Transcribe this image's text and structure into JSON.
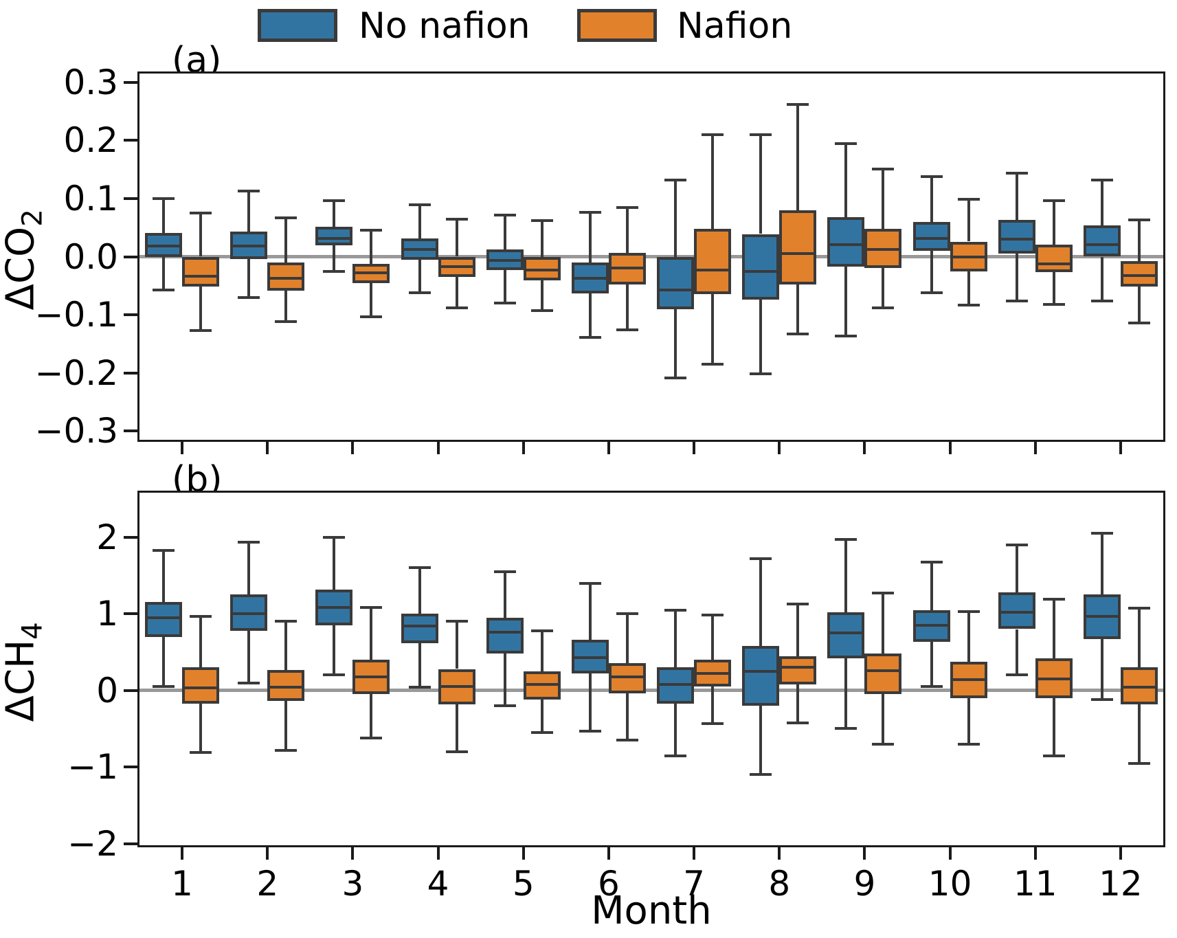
{
  "colors": {
    "no_nafion": "#3274A1",
    "nafion": "#E1812C",
    "box_edge": "#3A3A3A",
    "spine": "#1a1a1a",
    "zero_line": "#999999"
  },
  "legend": {
    "position": "top-center",
    "items": [
      {
        "label": "No nafion",
        "color": "#3274A1"
      },
      {
        "label": "Nafion",
        "color": "#E1812C"
      }
    ]
  },
  "xlabel": "Month",
  "chart_data": [
    {
      "type": "box",
      "panel_label": "(a)",
      "ylabel_base": "ΔCO",
      "ylabel_sub": "2",
      "ylim": [
        -0.315,
        0.315
      ],
      "yticks": [
        0.3,
        0.2,
        0.1,
        0.0,
        -0.1,
        -0.2,
        -0.3
      ],
      "ytick_labels": [
        "0.3",
        "0.2",
        "0.1",
        "0.0",
        "−0.1",
        "−0.2",
        "−0.3"
      ],
      "refline": 0,
      "grid": false,
      "categories": [
        "1",
        "2",
        "3",
        "4",
        "5",
        "6",
        "7",
        "8",
        "9",
        "10",
        "11",
        "12"
      ],
      "show_x_labels": false,
      "series": [
        {
          "name": "No nafion",
          "boxes": [
            {
              "whislo": -0.057,
              "q1": -0.001,
              "med": 0.018,
              "q3": 0.041,
              "whishi": 0.1
            },
            {
              "whislo": -0.07,
              "q1": -0.004,
              "med": 0.018,
              "q3": 0.043,
              "whishi": 0.113
            },
            {
              "whislo": -0.026,
              "q1": 0.019,
              "med": 0.031,
              "q3": 0.051,
              "whishi": 0.096
            },
            {
              "whislo": -0.062,
              "q1": -0.005,
              "med": 0.012,
              "q3": 0.031,
              "whishi": 0.089
            },
            {
              "whislo": -0.08,
              "q1": -0.023,
              "med": -0.007,
              "q3": 0.012,
              "whishi": 0.072
            },
            {
              "whislo": -0.139,
              "q1": -0.063,
              "med": -0.037,
              "q3": -0.01,
              "whishi": 0.076
            },
            {
              "whislo": -0.209,
              "q1": -0.091,
              "med": -0.057,
              "q3": -0.001,
              "whishi": 0.132
            },
            {
              "whislo": -0.202,
              "q1": -0.074,
              "med": -0.026,
              "q3": 0.039,
              "whishi": 0.21
            },
            {
              "whislo": -0.137,
              "q1": -0.017,
              "med": 0.021,
              "q3": 0.068,
              "whishi": 0.194
            },
            {
              "whislo": -0.062,
              "q1": 0.01,
              "med": 0.031,
              "q3": 0.06,
              "whishi": 0.138
            },
            {
              "whislo": -0.076,
              "q1": 0.005,
              "med": 0.03,
              "q3": 0.063,
              "whishi": 0.144
            },
            {
              "whislo": -0.076,
              "q1": 0.0,
              "med": 0.021,
              "q3": 0.054,
              "whishi": 0.132
            }
          ]
        },
        {
          "name": "Nafion",
          "boxes": [
            {
              "whislo": -0.127,
              "q1": -0.052,
              "med": -0.034,
              "q3": 0.0,
              "whishi": 0.075
            },
            {
              "whislo": -0.112,
              "q1": -0.058,
              "med": -0.037,
              "q3": -0.01,
              "whishi": 0.067
            },
            {
              "whislo": -0.103,
              "q1": -0.046,
              "med": -0.028,
              "q3": -0.012,
              "whishi": 0.045
            },
            {
              "whislo": -0.088,
              "q1": -0.035,
              "med": -0.017,
              "q3": 0.0,
              "whishi": 0.064
            },
            {
              "whislo": -0.093,
              "q1": -0.041,
              "med": -0.023,
              "q3": -0.001,
              "whishi": 0.062
            },
            {
              "whislo": -0.126,
              "q1": -0.048,
              "med": -0.02,
              "q3": 0.006,
              "whishi": 0.085
            },
            {
              "whislo": -0.185,
              "q1": -0.065,
              "med": -0.023,
              "q3": 0.048,
              "whishi": 0.21
            },
            {
              "whislo": -0.133,
              "q1": -0.048,
              "med": 0.005,
              "q3": 0.08,
              "whishi": 0.262
            },
            {
              "whislo": -0.088,
              "q1": -0.019,
              "med": 0.012,
              "q3": 0.048,
              "whishi": 0.151
            },
            {
              "whislo": -0.083,
              "q1": -0.026,
              "med": 0.0,
              "q3": 0.026,
              "whishi": 0.099
            },
            {
              "whislo": -0.082,
              "q1": -0.027,
              "med": -0.013,
              "q3": 0.021,
              "whishi": 0.096
            },
            {
              "whislo": -0.114,
              "q1": -0.051,
              "med": -0.032,
              "q3": -0.008,
              "whishi": 0.063
            }
          ]
        }
      ]
    },
    {
      "type": "box",
      "panel_label": "(b)",
      "ylabel_base": "ΔCH",
      "ylabel_sub": "4",
      "ylim": [
        -2.02,
        2.58
      ],
      "yticks": [
        2,
        1,
        0,
        -1,
        -2
      ],
      "ytick_labels": [
        "2",
        "1",
        "0",
        "−1",
        "−2"
      ],
      "refline": 0,
      "grid": false,
      "categories": [
        "1",
        "2",
        "3",
        "4",
        "5",
        "6",
        "7",
        "8",
        "9",
        "10",
        "11",
        "12"
      ],
      "show_x_labels": true,
      "series": [
        {
          "name": "No nafion",
          "boxes": [
            {
              "whislo": 0.05,
              "q1": 0.7,
              "med": 0.95,
              "q3": 1.15,
              "whishi": 1.83
            },
            {
              "whislo": 0.1,
              "q1": 0.78,
              "med": 1.0,
              "q3": 1.25,
              "whishi": 1.93
            },
            {
              "whislo": 0.2,
              "q1": 0.85,
              "med": 1.08,
              "q3": 1.32,
              "whishi": 2.0
            },
            {
              "whislo": 0.04,
              "q1": 0.62,
              "med": 0.84,
              "q3": 1.0,
              "whishi": 1.6
            },
            {
              "whislo": -0.2,
              "q1": 0.48,
              "med": 0.76,
              "q3": 0.95,
              "whishi": 1.55
            },
            {
              "whislo": -0.53,
              "q1": 0.22,
              "med": 0.43,
              "q3": 0.66,
              "whishi": 1.4
            },
            {
              "whislo": -0.85,
              "q1": -0.17,
              "med": 0.08,
              "q3": 0.3,
              "whishi": 1.05
            },
            {
              "whislo": -1.1,
              "q1": -0.2,
              "med": 0.25,
              "q3": 0.58,
              "whishi": 1.72
            },
            {
              "whislo": -0.5,
              "q1": 0.42,
              "med": 0.75,
              "q3": 1.02,
              "whishi": 1.97
            },
            {
              "whislo": 0.05,
              "q1": 0.63,
              "med": 0.85,
              "q3": 1.05,
              "whishi": 1.67
            },
            {
              "whislo": 0.2,
              "q1": 0.8,
              "med": 1.02,
              "q3": 1.28,
              "whishi": 1.9
            },
            {
              "whislo": -0.12,
              "q1": 0.67,
              "med": 0.97,
              "q3": 1.25,
              "whishi": 2.05
            }
          ]
        },
        {
          "name": "Nafion",
          "boxes": [
            {
              "whislo": -0.81,
              "q1": -0.17,
              "med": 0.03,
              "q3": 0.3,
              "whishi": 0.97
            },
            {
              "whislo": -0.78,
              "q1": -0.14,
              "med": 0.04,
              "q3": 0.27,
              "whishi": 0.9
            },
            {
              "whislo": -0.62,
              "q1": -0.05,
              "med": 0.18,
              "q3": 0.4,
              "whishi": 1.08
            },
            {
              "whislo": -0.8,
              "q1": -0.18,
              "med": 0.05,
              "q3": 0.28,
              "whishi": 0.9
            },
            {
              "whislo": -0.55,
              "q1": -0.12,
              "med": 0.08,
              "q3": 0.25,
              "whishi": 0.78
            },
            {
              "whislo": -0.65,
              "q1": -0.04,
              "med": 0.18,
              "q3": 0.36,
              "whishi": 1.0
            },
            {
              "whislo": -0.43,
              "q1": 0.05,
              "med": 0.22,
              "q3": 0.4,
              "whishi": 0.98
            },
            {
              "whislo": -0.42,
              "q1": 0.08,
              "med": 0.3,
              "q3": 0.45,
              "whishi": 1.13
            },
            {
              "whislo": -0.7,
              "q1": -0.05,
              "med": 0.26,
              "q3": 0.48,
              "whishi": 1.27
            },
            {
              "whislo": -0.7,
              "q1": -0.1,
              "med": 0.14,
              "q3": 0.37,
              "whishi": 1.03
            },
            {
              "whislo": -0.85,
              "q1": -0.1,
              "med": 0.15,
              "q3": 0.42,
              "whishi": 1.19
            },
            {
              "whislo": -0.95,
              "q1": -0.18,
              "med": 0.04,
              "q3": 0.3,
              "whishi": 1.07
            }
          ]
        }
      ]
    }
  ]
}
